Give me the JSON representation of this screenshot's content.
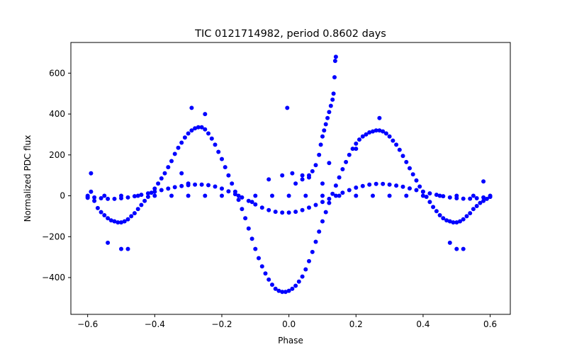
{
  "chart_data": {
    "type": "scatter",
    "title": "TIC 0121714982, period 0.8602 days",
    "xlabel": "Phase",
    "ylabel": "Normalized PDC flux",
    "xlim": [
      -0.65,
      0.66
    ],
    "ylim": [
      -580,
      750
    ],
    "xticks": [
      -0.6,
      -0.4,
      -0.2,
      0.0,
      0.2,
      0.4,
      0.6
    ],
    "xtick_labels": [
      "−0.6",
      "−0.4",
      "−0.2",
      "0.0",
      "0.2",
      "0.4",
      "0.6"
    ],
    "yticks": [
      -400,
      -200,
      0,
      200,
      400,
      600
    ],
    "ytick_labels": [
      "−400",
      "−200",
      "0",
      "200",
      "400",
      "600"
    ],
    "grid": false,
    "marker_color": "#0000ff",
    "series": [
      {
        "points": [
          [
            -0.6,
            -10
          ],
          [
            -0.59,
            20
          ],
          [
            -0.58,
            -25
          ],
          [
            -0.57,
            -60
          ],
          [
            -0.56,
            -80
          ],
          [
            -0.55,
            -95
          ],
          [
            -0.54,
            -110
          ],
          [
            -0.53,
            -120
          ],
          [
            -0.52,
            -125
          ],
          [
            -0.51,
            -130
          ],
          [
            -0.5,
            -130
          ],
          [
            -0.49,
            -125
          ],
          [
            -0.48,
            -115
          ],
          [
            -0.47,
            -100
          ],
          [
            -0.46,
            -85
          ],
          [
            -0.45,
            -65
          ],
          [
            -0.44,
            -45
          ],
          [
            -0.43,
            -25
          ],
          [
            -0.42,
            -5
          ],
          [
            -0.41,
            15
          ],
          [
            -0.4,
            35
          ],
          [
            -0.39,
            60
          ],
          [
            -0.38,
            85
          ],
          [
            -0.37,
            110
          ],
          [
            -0.36,
            140
          ],
          [
            -0.35,
            170
          ],
          [
            -0.34,
            205
          ],
          [
            -0.33,
            235
          ],
          [
            -0.32,
            260
          ],
          [
            -0.31,
            285
          ],
          [
            -0.3,
            305
          ],
          [
            -0.29,
            320
          ],
          [
            -0.28,
            330
          ],
          [
            -0.27,
            335
          ],
          [
            -0.26,
            335
          ],
          [
            -0.25,
            325
          ],
          [
            -0.24,
            305
          ],
          [
            -0.23,
            280
          ],
          [
            -0.22,
            250
          ],
          [
            -0.21,
            215
          ],
          [
            -0.2,
            180
          ],
          [
            -0.19,
            140
          ],
          [
            -0.18,
            100
          ],
          [
            -0.17,
            60
          ],
          [
            -0.16,
            20
          ],
          [
            -0.15,
            -20
          ],
          [
            -0.14,
            -65
          ],
          [
            -0.13,
            -110
          ],
          [
            -0.12,
            -160
          ],
          [
            -0.11,
            -210
          ],
          [
            -0.1,
            -260
          ],
          [
            -0.09,
            -305
          ],
          [
            -0.08,
            -345
          ],
          [
            -0.07,
            -380
          ],
          [
            -0.06,
            -410
          ],
          [
            -0.05,
            -435
          ],
          [
            -0.04,
            -455
          ],
          [
            -0.03,
            -465
          ],
          [
            -0.02,
            -470
          ],
          [
            -0.01,
            -470
          ],
          [
            0.0,
            -465
          ],
          [
            0.01,
            -455
          ],
          [
            0.02,
            -440
          ],
          [
            0.03,
            -420
          ],
          [
            0.04,
            -395
          ],
          [
            0.05,
            -360
          ],
          [
            0.06,
            -320
          ],
          [
            0.07,
            -275
          ],
          [
            0.08,
            -225
          ],
          [
            0.09,
            -175
          ],
          [
            0.1,
            -125
          ],
          [
            0.11,
            -80
          ],
          [
            0.12,
            -35
          ],
          [
            0.13,
            10
          ],
          [
            0.14,
            50
          ],
          [
            0.15,
            90
          ],
          [
            0.16,
            130
          ],
          [
            0.17,
            165
          ],
          [
            0.18,
            200
          ],
          [
            0.19,
            230
          ],
          [
            0.2,
            255
          ],
          [
            0.21,
            275
          ],
          [
            0.22,
            290
          ],
          [
            0.23,
            300
          ],
          [
            0.24,
            310
          ],
          [
            0.25,
            315
          ],
          [
            0.26,
            320
          ],
          [
            0.27,
            320
          ],
          [
            0.28,
            315
          ],
          [
            0.29,
            305
          ],
          [
            0.3,
            290
          ],
          [
            0.31,
            270
          ],
          [
            0.32,
            250
          ],
          [
            0.33,
            225
          ],
          [
            0.34,
            195
          ],
          [
            0.35,
            165
          ],
          [
            0.36,
            135
          ],
          [
            0.37,
            105
          ],
          [
            0.38,
            75
          ],
          [
            0.39,
            45
          ],
          [
            0.4,
            20
          ],
          [
            0.41,
            -5
          ],
          [
            0.42,
            -30
          ],
          [
            0.43,
            -55
          ],
          [
            0.44,
            -75
          ],
          [
            0.45,
            -95
          ],
          [
            0.46,
            -110
          ],
          [
            0.47,
            -120
          ],
          [
            0.48,
            -125
          ],
          [
            0.49,
            -130
          ],
          [
            0.5,
            -130
          ],
          [
            0.51,
            -125
          ],
          [
            0.52,
            -115
          ],
          [
            0.53,
            -100
          ],
          [
            0.54,
            -85
          ],
          [
            0.55,
            -65
          ],
          [
            0.56,
            -50
          ],
          [
            0.57,
            -35
          ],
          [
            0.58,
            -25
          ],
          [
            0.59,
            -15
          ],
          [
            0.6,
            -5
          ],
          [
            -0.6,
            -5
          ],
          [
            -0.58,
            -8
          ],
          [
            -0.56,
            -12
          ],
          [
            -0.54,
            -15
          ],
          [
            -0.52,
            -15
          ],
          [
            -0.5,
            -12
          ],
          [
            -0.48,
            -8
          ],
          [
            -0.46,
            -2
          ],
          [
            -0.44,
            5
          ],
          [
            -0.42,
            12
          ],
          [
            -0.4,
            20
          ],
          [
            -0.38,
            28
          ],
          [
            -0.36,
            35
          ],
          [
            -0.34,
            42
          ],
          [
            -0.32,
            48
          ],
          [
            -0.3,
            52
          ],
          [
            -0.28,
            55
          ],
          [
            -0.26,
            55
          ],
          [
            -0.24,
            52
          ],
          [
            -0.22,
            45
          ],
          [
            -0.2,
            35
          ],
          [
            -0.18,
            22
          ],
          [
            -0.16,
            8
          ],
          [
            -0.14,
            -8
          ],
          [
            -0.12,
            -25
          ],
          [
            -0.1,
            -42
          ],
          [
            -0.08,
            -58
          ],
          [
            -0.06,
            -70
          ],
          [
            -0.04,
            -78
          ],
          [
            -0.02,
            -82
          ],
          [
            0.0,
            -82
          ],
          [
            0.02,
            -78
          ],
          [
            0.04,
            -70
          ],
          [
            0.06,
            -58
          ],
          [
            0.08,
            -45
          ],
          [
            0.1,
            -30
          ],
          [
            0.12,
            -15
          ],
          [
            0.14,
            0
          ],
          [
            0.16,
            15
          ],
          [
            0.18,
            28
          ],
          [
            0.2,
            40
          ],
          [
            0.22,
            48
          ],
          [
            0.24,
            55
          ],
          [
            0.26,
            58
          ],
          [
            0.28,
            58
          ],
          [
            0.3,
            55
          ],
          [
            0.32,
            50
          ],
          [
            0.34,
            44
          ],
          [
            0.36,
            36
          ],
          [
            0.38,
            28
          ],
          [
            0.4,
            20
          ],
          [
            0.42,
            12
          ],
          [
            0.44,
            5
          ],
          [
            0.46,
            -2
          ],
          [
            0.48,
            -8
          ],
          [
            0.5,
            -12
          ],
          [
            0.52,
            -14
          ],
          [
            0.54,
            -14
          ],
          [
            0.56,
            -12
          ],
          [
            0.58,
            -8
          ],
          [
            0.6,
            -5
          ],
          [
            -0.6,
            0
          ],
          [
            -0.55,
            0
          ],
          [
            -0.5,
            0
          ],
          [
            -0.45,
            0
          ],
          [
            -0.4,
            0
          ],
          [
            -0.35,
            0
          ],
          [
            -0.3,
            0
          ],
          [
            -0.25,
            0
          ],
          [
            -0.2,
            0
          ],
          [
            -0.15,
            0
          ],
          [
            -0.1,
            0
          ],
          [
            -0.05,
            0
          ],
          [
            0.0,
            0
          ],
          [
            0.05,
            0
          ],
          [
            0.1,
            0
          ],
          [
            0.15,
            0
          ],
          [
            0.2,
            0
          ],
          [
            0.25,
            0
          ],
          [
            0.3,
            0
          ],
          [
            0.35,
            0
          ],
          [
            0.4,
            0
          ],
          [
            0.45,
            0
          ],
          [
            0.5,
            0
          ],
          [
            0.55,
            0
          ],
          [
            0.6,
            0
          ],
          [
            0.02,
            60
          ],
          [
            0.04,
            80
          ],
          [
            0.06,
            100
          ],
          [
            0.07,
            120
          ],
          [
            0.08,
            150
          ],
          [
            0.09,
            200
          ],
          [
            0.095,
            250
          ],
          [
            0.1,
            290
          ],
          [
            0.105,
            320
          ],
          [
            0.11,
            350
          ],
          [
            0.115,
            380
          ],
          [
            0.12,
            410
          ],
          [
            0.125,
            440
          ],
          [
            0.13,
            470
          ],
          [
            0.133,
            500
          ],
          [
            0.136,
            580
          ],
          [
            0.138,
            660
          ],
          [
            0.14,
            680
          ],
          [
            -0.005,
            430
          ],
          [
            -0.59,
            110
          ],
          [
            -0.48,
            -260
          ],
          [
            -0.5,
            -260
          ],
          [
            -0.54,
            -230
          ],
          [
            0.5,
            -260
          ],
          [
            0.52,
            -260
          ],
          [
            0.48,
            -230
          ],
          [
            -0.29,
            430
          ],
          [
            -0.25,
            400
          ],
          [
            0.27,
            380
          ],
          [
            0.2,
            230
          ],
          [
            0.04,
            100
          ],
          [
            0.06,
            90
          ],
          [
            -0.32,
            110
          ],
          [
            -0.3,
            60
          ],
          [
            -0.06,
            80
          ],
          [
            -0.11,
            -30
          ],
          [
            0.12,
            160
          ],
          [
            0.1,
            60
          ],
          [
            0.58,
            70
          ],
          [
            -0.02,
            100
          ],
          [
            0.01,
            110
          ]
        ]
      }
    ]
  }
}
